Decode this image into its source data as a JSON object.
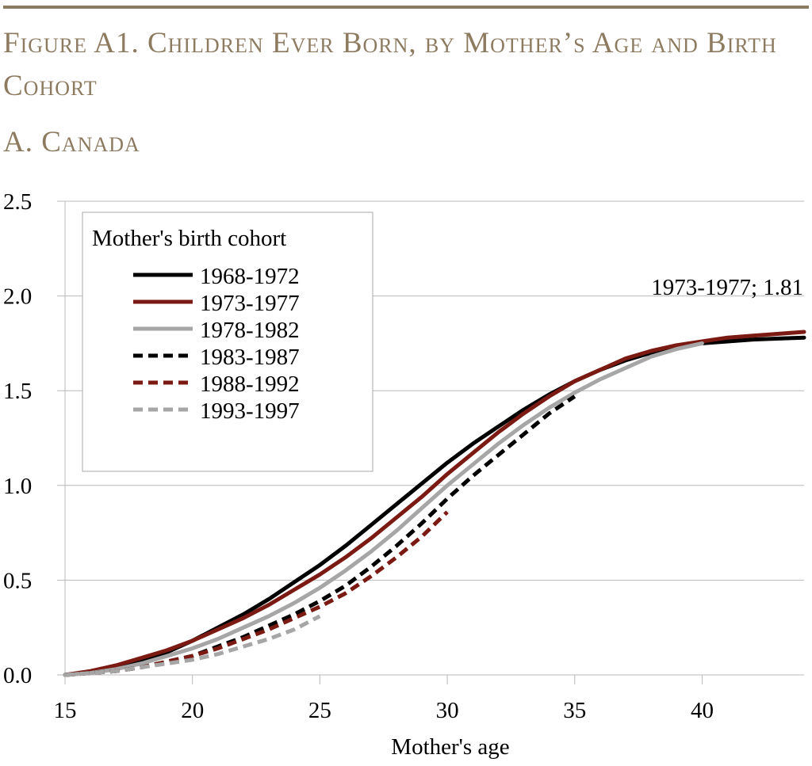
{
  "header": {
    "title": "Figure A1. Children Ever Born, by Mother’s Age and Birth Cohort",
    "panel": "A. Canada"
  },
  "chart_data": {
    "type": "line",
    "title": "A. Canada",
    "xlabel": "Mother's age",
    "ylabel": "",
    "xlim": [
      15,
      44
    ],
    "ylim": [
      0,
      2.5
    ],
    "x_ticks": [
      "15",
      "20",
      "25",
      "30",
      "35",
      "40"
    ],
    "y_ticks": [
      "0.0",
      "0.5",
      "1.0",
      "1.5",
      "2.0",
      "2.5"
    ],
    "grid": "horizontal",
    "legend": {
      "title": "Mother's birth cohort",
      "placement": "top-left"
    },
    "annotation": "1973-1977; 1.81",
    "series": [
      {
        "name": "1968-1972",
        "color": "#000000",
        "dash": false,
        "x_start": 15,
        "values": [
          0,
          0.015,
          0.04,
          0.08,
          0.12,
          0.18,
          0.25,
          0.32,
          0.4,
          0.49,
          0.58,
          0.68,
          0.79,
          0.9,
          1.01,
          1.12,
          1.22,
          1.31,
          1.4,
          1.48,
          1.55,
          1.61,
          1.66,
          1.7,
          1.73,
          1.75,
          1.76,
          1.77,
          1.775,
          1.78
        ]
      },
      {
        "name": "1973-1977",
        "color": "#7b1a12",
        "dash": false,
        "x_start": 15,
        "values": [
          0,
          0.02,
          0.05,
          0.09,
          0.13,
          0.18,
          0.24,
          0.3,
          0.37,
          0.45,
          0.53,
          0.62,
          0.72,
          0.83,
          0.94,
          1.06,
          1.17,
          1.28,
          1.38,
          1.47,
          1.55,
          1.61,
          1.67,
          1.71,
          1.74,
          1.76,
          1.78,
          1.79,
          1.8,
          1.81
        ]
      },
      {
        "name": "1978-1982",
        "color": "#a6a6a6",
        "dash": false,
        "x_start": 15,
        "values": [
          0,
          0.01,
          0.03,
          0.06,
          0.1,
          0.14,
          0.19,
          0.25,
          0.31,
          0.38,
          0.46,
          0.55,
          0.65,
          0.76,
          0.88,
          1.0,
          1.11,
          1.22,
          1.32,
          1.41,
          1.49,
          1.56,
          1.62,
          1.68,
          1.72,
          1.75
        ]
      },
      {
        "name": "1983-1987",
        "color": "#000000",
        "dash": true,
        "x_start": 15,
        "values": [
          0,
          0.01,
          0.02,
          0.04,
          0.07,
          0.1,
          0.15,
          0.2,
          0.26,
          0.32,
          0.39,
          0.47,
          0.57,
          0.68,
          0.8,
          0.93,
          1.05,
          1.16,
          1.27,
          1.38,
          1.47
        ]
      },
      {
        "name": "1988-1992",
        "color": "#7b1a12",
        "dash": true,
        "x_start": 15,
        "values": [
          0,
          0.01,
          0.02,
          0.04,
          0.07,
          0.1,
          0.14,
          0.19,
          0.24,
          0.3,
          0.36,
          0.43,
          0.52,
          0.62,
          0.73,
          0.86
        ]
      },
      {
        "name": "1993-1997",
        "color": "#a6a6a6",
        "dash": true,
        "x_start": 15,
        "values": [
          0,
          0.01,
          0.02,
          0.04,
          0.06,
          0.08,
          0.11,
          0.15,
          0.19,
          0.24,
          0.31
        ]
      }
    ]
  }
}
